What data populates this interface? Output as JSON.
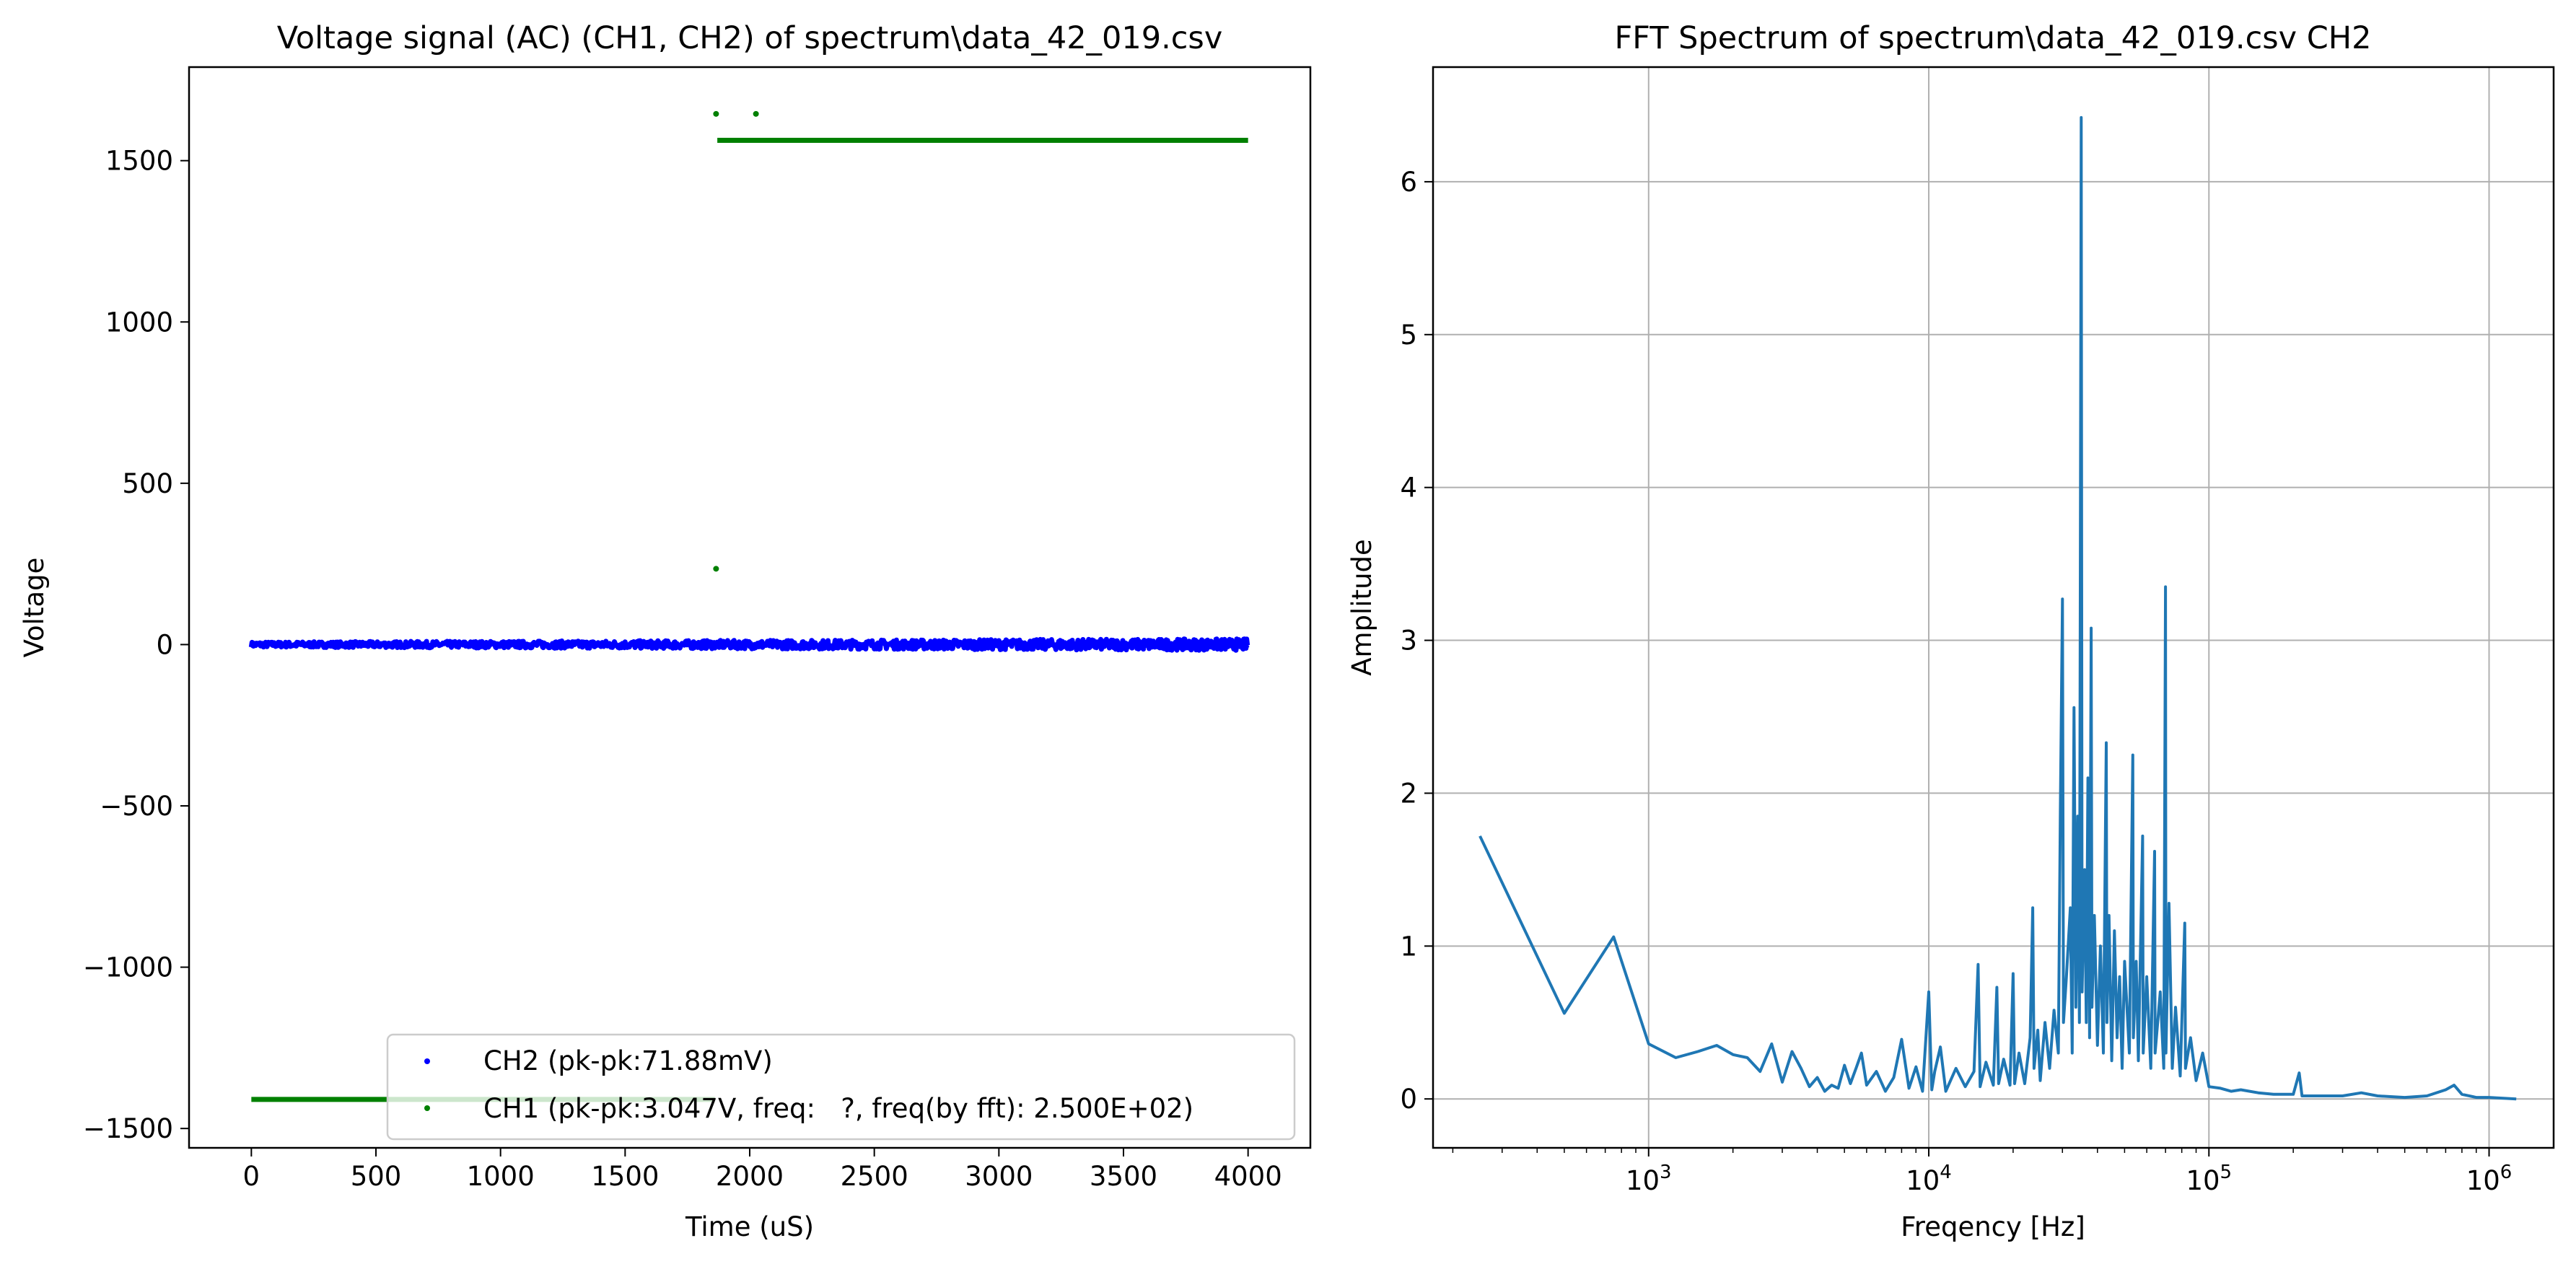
{
  "chart_data": [
    {
      "type": "scatter",
      "title": "Voltage signal (AC) (CH1, CH2) of spectrum\\data_42_019.csv",
      "xlabel": "Time (uS)",
      "ylabel": "Voltage",
      "xlim": [
        -250,
        4250
      ],
      "ylim": [
        -1560,
        1790
      ],
      "xscale": "linear",
      "grid": false,
      "legend_position": "lower right",
      "x_ticks": [
        0,
        500,
        1000,
        1500,
        2000,
        2500,
        3000,
        3500,
        4000
      ],
      "x_tick_labels": [
        "0",
        "500",
        "1000",
        "1500",
        "2000",
        "2500",
        "3000",
        "3500",
        "4000"
      ],
      "y_ticks": [
        -1500,
        -1000,
        -500,
        0,
        500,
        1000,
        1500
      ],
      "y_tick_labels": [
        "−1500",
        "−1000",
        "−500",
        "0",
        "500",
        "1000",
        "1500"
      ],
      "series": [
        {
          "name": "CH2 (pk-pk:71.88mV)",
          "color": "#0000ff",
          "description_values": {
            "x_range": [
              0,
              4000
            ],
            "y_center": 0,
            "y_pkpk_display": 36
          },
          "x_range": [
            0,
            4000
          ],
          "y_center": 0,
          "y_amplitude": 18
        },
        {
          "name": "CH1 (pk-pk:3.047V, freq:   ?, freq(by fft): 2.500E+02)",
          "color": "#008000",
          "segments": [
            {
              "x": [
                0,
                1860
              ],
              "y": -1410
            },
            {
              "x": [
                1870,
                4000
              ],
              "y": 1563
            }
          ],
          "outliers": [
            {
              "x": 1865,
              "y": 1645
            },
            {
              "x": 2025,
              "y": 1645
            },
            {
              "x": 1865,
              "y": 235
            }
          ]
        }
      ]
    },
    {
      "type": "line",
      "title": "FFT Spectrum of spectrum\\data_42_019.csv CH2",
      "xlabel": "Freqency [Hz]",
      "ylabel": "Amplitude",
      "xscale": "log",
      "xlim": [
        170,
        1700000
      ],
      "ylim": [
        -0.32,
        6.75
      ],
      "grid": true,
      "x_ticks": [
        1000,
        10000,
        100000,
        1000000
      ],
      "x_tick_labels": [
        [
          "10",
          "3"
        ],
        [
          "10",
          "4"
        ],
        [
          "10",
          "5"
        ],
        [
          "10",
          "6"
        ]
      ],
      "y_ticks": [
        0,
        1,
        2,
        3,
        4,
        5,
        6
      ],
      "y_tick_labels": [
        "0",
        "1",
        "2",
        "3",
        "4",
        "5",
        "6"
      ],
      "series": [
        {
          "color": "#1f77b4",
          "points": [
            [
              250,
              1.72
            ],
            [
              500,
              0.56
            ],
            [
              750,
              1.06
            ],
            [
              1000,
              0.36
            ],
            [
              1250,
              0.27
            ],
            [
              1500,
              0.31
            ],
            [
              1750,
              0.35
            ],
            [
              2000,
              0.29
            ],
            [
              2250,
              0.27
            ],
            [
              2500,
              0.18
            ],
            [
              2750,
              0.36
            ],
            [
              3000,
              0.11
            ],
            [
              3250,
              0.31
            ],
            [
              3500,
              0.2
            ],
            [
              3750,
              0.08
            ],
            [
              4000,
              0.14
            ],
            [
              4250,
              0.05
            ],
            [
              4500,
              0.09
            ],
            [
              4750,
              0.07
            ],
            [
              5000,
              0.22
            ],
            [
              5250,
              0.1
            ],
            [
              5500,
              0.2
            ],
            [
              5750,
              0.3
            ],
            [
              6000,
              0.09
            ],
            [
              6500,
              0.18
            ],
            [
              7000,
              0.05
            ],
            [
              7500,
              0.14
            ],
            [
              8000,
              0.39
            ],
            [
              8500,
              0.07
            ],
            [
              9000,
              0.21
            ],
            [
              9500,
              0.05
            ],
            [
              10000,
              0.7
            ],
            [
              10250,
              0.06
            ],
            [
              10500,
              0.18
            ],
            [
              11000,
              0.34
            ],
            [
              11500,
              0.05
            ],
            [
              12500,
              0.2
            ],
            [
              13500,
              0.08
            ],
            [
              14500,
              0.18
            ],
            [
              15000,
              0.88
            ],
            [
              15250,
              0.08
            ],
            [
              16000,
              0.24
            ],
            [
              17000,
              0.09
            ],
            [
              17500,
              0.73
            ],
            [
              17750,
              0.1
            ],
            [
              18500,
              0.26
            ],
            [
              19500,
              0.09
            ],
            [
              20000,
              0.82
            ],
            [
              20250,
              0.1
            ],
            [
              21000,
              0.3
            ],
            [
              22000,
              0.1
            ],
            [
              23000,
              0.4
            ],
            [
              23500,
              1.25
            ],
            [
              23750,
              0.2
            ],
            [
              24500,
              0.45
            ],
            [
              25000,
              0.12
            ],
            [
              26000,
              0.5
            ],
            [
              27000,
              0.2
            ],
            [
              28000,
              0.58
            ],
            [
              29000,
              0.3
            ],
            [
              29500,
              1.9
            ],
            [
              30000,
              3.27
            ],
            [
              30250,
              0.5
            ],
            [
              31000,
              0.8
            ],
            [
              32000,
              1.25
            ],
            [
              32500,
              0.3
            ],
            [
              33000,
              2.56
            ],
            [
              33500,
              0.6
            ],
            [
              34000,
              1.85
            ],
            [
              34500,
              0.5
            ],
            [
              35000,
              6.42
            ],
            [
              35250,
              0.7
            ],
            [
              36000,
              1.5
            ],
            [
              36500,
              0.5
            ],
            [
              37000,
              2.1
            ],
            [
              37500,
              0.4
            ],
            [
              38000,
              3.08
            ],
            [
              38250,
              0.6
            ],
            [
              39000,
              1.2
            ],
            [
              40000,
              0.35
            ],
            [
              41000,
              1.0
            ],
            [
              42000,
              0.3
            ],
            [
              43000,
              2.33
            ],
            [
              43250,
              0.5
            ],
            [
              44000,
              1.2
            ],
            [
              45000,
              0.25
            ],
            [
              46000,
              1.1
            ],
            [
              47000,
              0.4
            ],
            [
              48000,
              0.8
            ],
            [
              49000,
              0.2
            ],
            [
              50000,
              0.9
            ],
            [
              52000,
              0.3
            ],
            [
              53500,
              2.25
            ],
            [
              53750,
              0.4
            ],
            [
              55000,
              0.9
            ],
            [
              56000,
              0.25
            ],
            [
              58000,
              1.72
            ],
            [
              58250,
              0.3
            ],
            [
              60000,
              0.8
            ],
            [
              62000,
              0.2
            ],
            [
              64000,
              1.62
            ],
            [
              64250,
              0.3
            ],
            [
              67000,
              0.7
            ],
            [
              69000,
              0.2
            ],
            [
              70000,
              3.35
            ],
            [
              70250,
              0.3
            ],
            [
              72000,
              1.28
            ],
            [
              74000,
              0.2
            ],
            [
              76000,
              0.6
            ],
            [
              79000,
              0.15
            ],
            [
              82000,
              1.15
            ],
            [
              82500,
              0.2
            ],
            [
              86000,
              0.4
            ],
            [
              90000,
              0.12
            ],
            [
              95000,
              0.3
            ],
            [
              100000,
              0.08
            ],
            [
              110000,
              0.07
            ],
            [
              120000,
              0.05
            ],
            [
              130000,
              0.06
            ],
            [
              150000,
              0.04
            ],
            [
              170000,
              0.03
            ],
            [
              200000,
              0.03
            ],
            [
              210000,
              0.17
            ],
            [
              215000,
              0.02
            ],
            [
              250000,
              0.02
            ],
            [
              300000,
              0.02
            ],
            [
              350000,
              0.04
            ],
            [
              400000,
              0.02
            ],
            [
              500000,
              0.01
            ],
            [
              600000,
              0.02
            ],
            [
              700000,
              0.06
            ],
            [
              750000,
              0.09
            ],
            [
              800000,
              0.03
            ],
            [
              900000,
              0.01
            ],
            [
              1000000,
              0.01
            ],
            [
              1250000,
              0.0
            ]
          ]
        }
      ]
    }
  ]
}
